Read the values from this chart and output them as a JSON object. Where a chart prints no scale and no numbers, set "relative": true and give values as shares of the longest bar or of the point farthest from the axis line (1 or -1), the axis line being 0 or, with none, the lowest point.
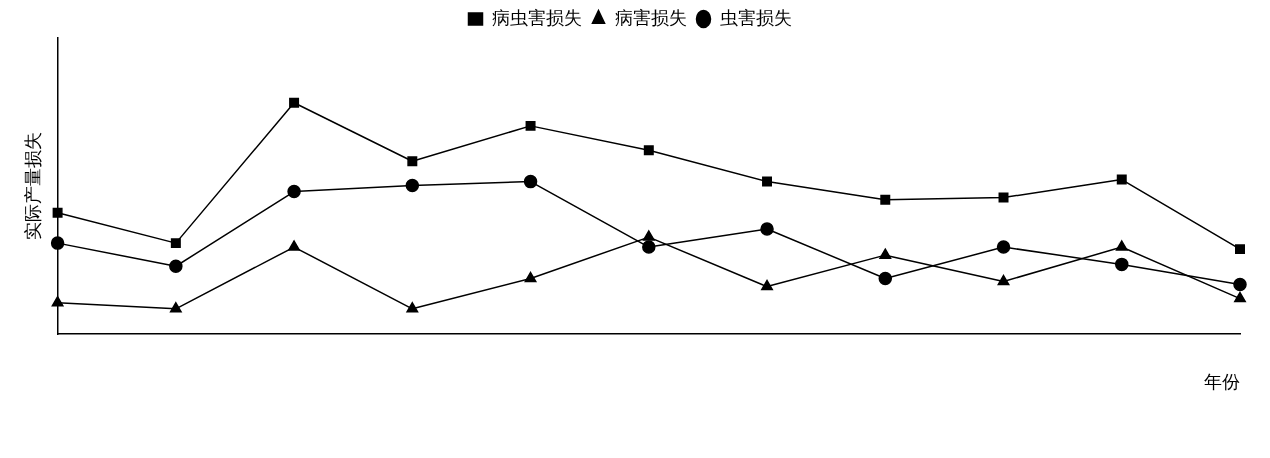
{
  "chart_data": {
    "type": "line",
    "relative": true,
    "xlabel": "年份",
    "ylabel": "实际产量损失",
    "legend": "top",
    "grid": false,
    "categories": [
      null,
      null,
      null,
      null,
      null,
      null,
      null,
      null,
      null,
      null,
      null
    ],
    "series": [
      {
        "name": "病虫害损失",
        "color": "#000000",
        "marker": "square",
        "values": [
          0.524,
          0.393,
          1,
          0.747,
          0.9,
          0.795,
          0.659,
          0.581,
          0.59,
          0.668,
          0.367
        ]
      },
      {
        "name": "病害损失",
        "color": "#000000",
        "marker": "triangle",
        "values": [
          0.135,
          0.109,
          0.376,
          0.109,
          0.24,
          0.419,
          0.205,
          0.341,
          0.227,
          0.376,
          0.153
        ]
      },
      {
        "name": "虫害损失",
        "color": "#000000",
        "marker": "circle",
        "values": [
          0.393,
          0.293,
          0.616,
          0.642,
          0.659,
          0.376,
          0.454,
          0.24,
          0.376,
          0.301,
          0.214
        ]
      }
    ]
  }
}
